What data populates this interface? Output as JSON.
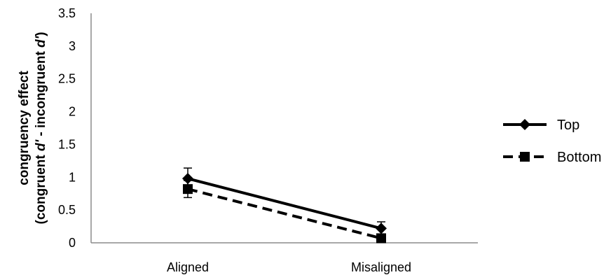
{
  "chart_data": {
    "type": "line",
    "categories": [
      "Aligned",
      "Misaligned"
    ],
    "ylabel_line1": "congruency effect",
    "ylabel_line2_parts": [
      "(congruent ",
      "d'",
      " - incongruent ",
      "d'",
      ")"
    ],
    "ylim": [
      0,
      3.5
    ],
    "yticks": [
      "0",
      "0.5",
      "1",
      "1.5",
      "2",
      "2.5",
      "3",
      "3.5"
    ],
    "grid": false,
    "legend_position": "right",
    "series": [
      {
        "name": "Top",
        "values": [
          0.98,
          0.22
        ],
        "errors": [
          0.16,
          0.1
        ],
        "line_style": "solid",
        "marker": "diamond",
        "color": "#000000"
      },
      {
        "name": "Bottom",
        "values": [
          0.82,
          0.07
        ],
        "errors": [
          0.13,
          0.06
        ],
        "line_style": "dashed",
        "marker": "square",
        "color": "#000000"
      }
    ]
  }
}
